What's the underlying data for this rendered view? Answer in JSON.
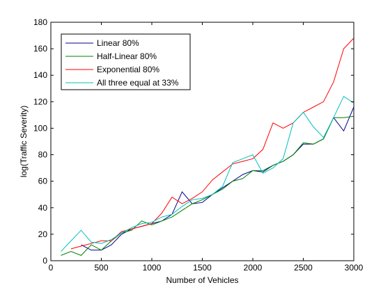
{
  "chart_data": {
    "type": "line",
    "xlabel": "Number of Vehicles",
    "ylabel": "log(Traffic Severity)",
    "xlim": [
      0,
      3000
    ],
    "ylim": [
      0,
      180
    ],
    "xticks": [
      0,
      500,
      1000,
      1500,
      2000,
      2500,
      3000
    ],
    "yticks": [
      0,
      20,
      40,
      60,
      80,
      100,
      120,
      140,
      160,
      180
    ],
    "xtick_labels": [
      "0",
      "500",
      "1000",
      "1500",
      "2000",
      "2500",
      "3000"
    ],
    "ytick_labels": [
      "0",
      "20",
      "40",
      "60",
      "80",
      "100",
      "120",
      "140",
      "160",
      "180"
    ],
    "grid": false,
    "legend_position": "top-left",
    "series": [
      {
        "name": "Linear 80%",
        "color": "#00008b",
        "points": [
          [
            300,
            12
          ],
          [
            400,
            8
          ],
          [
            500,
            8
          ],
          [
            600,
            12
          ],
          [
            700,
            20
          ],
          [
            800,
            24
          ],
          [
            900,
            26
          ],
          [
            1000,
            28
          ],
          [
            1100,
            30
          ],
          [
            1200,
            35
          ],
          [
            1300,
            52
          ],
          [
            1400,
            43
          ],
          [
            1500,
            44
          ],
          [
            1600,
            50
          ],
          [
            1700,
            55
          ],
          [
            1800,
            60
          ],
          [
            1900,
            65
          ],
          [
            2000,
            68
          ],
          [
            2100,
            67
          ],
          [
            2200,
            72
          ],
          [
            2300,
            75
          ],
          [
            2400,
            80
          ],
          [
            2500,
            88
          ],
          [
            2600,
            88
          ],
          [
            2700,
            92
          ],
          [
            2800,
            108
          ],
          [
            2900,
            98
          ],
          [
            3000,
            116
          ]
        ]
      },
      {
        "name": "Half-Linear 80%",
        "color": "#008000",
        "points": [
          [
            100,
            4
          ],
          [
            200,
            7
          ],
          [
            300,
            4
          ],
          [
            400,
            12
          ],
          [
            500,
            8
          ],
          [
            600,
            15
          ],
          [
            700,
            21
          ],
          [
            800,
            23
          ],
          [
            900,
            30
          ],
          [
            1000,
            27
          ],
          [
            1100,
            30
          ],
          [
            1200,
            33
          ],
          [
            1300,
            38
          ],
          [
            1400,
            43
          ],
          [
            1500,
            46
          ],
          [
            1600,
            50
          ],
          [
            1700,
            54
          ],
          [
            1800,
            60
          ],
          [
            1900,
            62
          ],
          [
            2000,
            68
          ],
          [
            2100,
            68
          ],
          [
            2200,
            72
          ],
          [
            2300,
            75
          ],
          [
            2400,
            80
          ],
          [
            2500,
            89
          ],
          [
            2600,
            88
          ],
          [
            2700,
            92
          ],
          [
            2800,
            108
          ],
          [
            2900,
            108
          ],
          [
            3000,
            109
          ]
        ]
      },
      {
        "name": "Exponential 80%",
        "color": "#ff0000",
        "points": [
          [
            200,
            9
          ],
          [
            300,
            11
          ],
          [
            400,
            13
          ],
          [
            500,
            15
          ],
          [
            600,
            15
          ],
          [
            700,
            22
          ],
          [
            800,
            24
          ],
          [
            900,
            26
          ],
          [
            1000,
            28
          ],
          [
            1100,
            36
          ],
          [
            1200,
            48
          ],
          [
            1300,
            43
          ],
          [
            1400,
            47
          ],
          [
            1500,
            52
          ],
          [
            1600,
            61
          ],
          [
            1700,
            67
          ],
          [
            1800,
            73
          ],
          [
            1900,
            75
          ],
          [
            2000,
            77
          ],
          [
            2100,
            84
          ],
          [
            2200,
            104
          ],
          [
            2300,
            100
          ],
          [
            2400,
            104
          ],
          [
            2500,
            112
          ],
          [
            2600,
            116
          ],
          [
            2700,
            120
          ],
          [
            2800,
            135
          ],
          [
            2900,
            160
          ],
          [
            3000,
            168
          ]
        ]
      },
      {
        "name": "All three equal at 33%",
        "color": "#00bfbf",
        "points": [
          [
            100,
            7
          ],
          [
            200,
            15
          ],
          [
            300,
            23
          ],
          [
            400,
            14
          ],
          [
            500,
            13
          ],
          [
            600,
            16
          ],
          [
            700,
            21
          ],
          [
            800,
            25
          ],
          [
            900,
            28
          ],
          [
            1000,
            29
          ],
          [
            1100,
            33
          ],
          [
            1200,
            35
          ],
          [
            1300,
            41
          ],
          [
            1400,
            46
          ],
          [
            1500,
            47
          ],
          [
            1600,
            50
          ],
          [
            1700,
            56
          ],
          [
            1800,
            74
          ],
          [
            1900,
            77
          ],
          [
            2000,
            80
          ],
          [
            2100,
            66
          ],
          [
            2200,
            70
          ],
          [
            2300,
            77
          ],
          [
            2400,
            104
          ],
          [
            2500,
            112
          ],
          [
            2600,
            101
          ],
          [
            2700,
            93
          ],
          [
            2800,
            108
          ],
          [
            2900,
            124
          ],
          [
            3000,
            119
          ]
        ]
      }
    ]
  }
}
